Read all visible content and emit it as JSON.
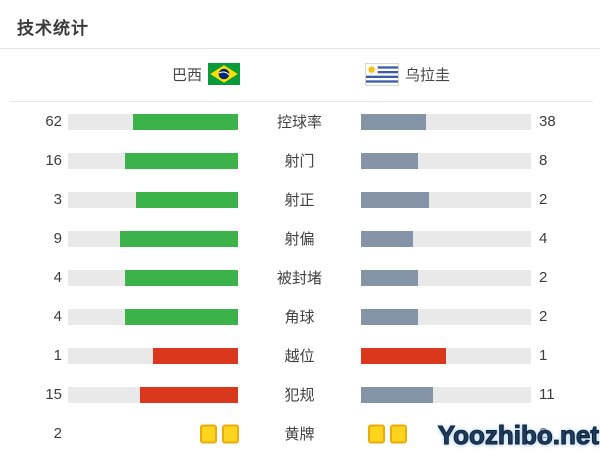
{
  "header": {
    "title": "技术统计"
  },
  "teams": {
    "home": {
      "name": "巴西",
      "flag": "brazil-flag"
    },
    "away": {
      "name": "乌拉圭",
      "flag": "uruguay-flag"
    }
  },
  "colors": {
    "green": "#3CB24A",
    "slate": "#8593A7",
    "red": "#D9381D",
    "track": "#E9E9E9",
    "card_fill": "#FFD41F",
    "card_border": "#EDAA0B",
    "watermark": "#1D3C5E"
  },
  "stats": [
    {
      "label": "控球率",
      "home": 62,
      "away": 38,
      "home_color": "green",
      "away_color": "slate",
      "type": "bar"
    },
    {
      "label": "射门",
      "home": 16,
      "away": 8,
      "home_color": "green",
      "away_color": "slate",
      "type": "bar"
    },
    {
      "label": "射正",
      "home": 3,
      "away": 2,
      "home_color": "green",
      "away_color": "slate",
      "type": "bar"
    },
    {
      "label": "射偏",
      "home": 9,
      "away": 4,
      "home_color": "green",
      "away_color": "slate",
      "type": "bar"
    },
    {
      "label": "被封堵",
      "home": 4,
      "away": 2,
      "home_color": "green",
      "away_color": "slate",
      "type": "bar"
    },
    {
      "label": "角球",
      "home": 4,
      "away": 2,
      "home_color": "green",
      "away_color": "slate",
      "type": "bar"
    },
    {
      "label": "越位",
      "home": 1,
      "away": 1,
      "home_color": "red",
      "away_color": "red",
      "type": "bar"
    },
    {
      "label": "犯规",
      "home": 15,
      "away": 11,
      "home_color": "red",
      "away_color": "slate",
      "type": "bar"
    },
    {
      "label": "黄牌",
      "home": 2,
      "away": 2,
      "home_color": "yellow",
      "away_color": "yellow",
      "type": "cards"
    }
  ],
  "watermark": {
    "text": "Yoozhibo.net"
  },
  "chart_data": {
    "type": "bar",
    "orientation": "horizontal",
    "title": "技术统计",
    "categories": [
      "控球率",
      "射门",
      "射正",
      "射偏",
      "被封堵",
      "角球",
      "越位",
      "犯规",
      "黄牌"
    ],
    "series": [
      {
        "name": "巴西",
        "values": [
          62,
          16,
          3,
          9,
          4,
          4,
          1,
          15,
          2
        ]
      },
      {
        "name": "乌拉圭",
        "values": [
          38,
          8,
          2,
          4,
          2,
          2,
          1,
          11,
          2
        ]
      }
    ],
    "value_labels_shown": true,
    "bar_fill_rule": "each bar filled to value/(home+away) of track length",
    "legend_position": "top",
    "grid": false
  }
}
